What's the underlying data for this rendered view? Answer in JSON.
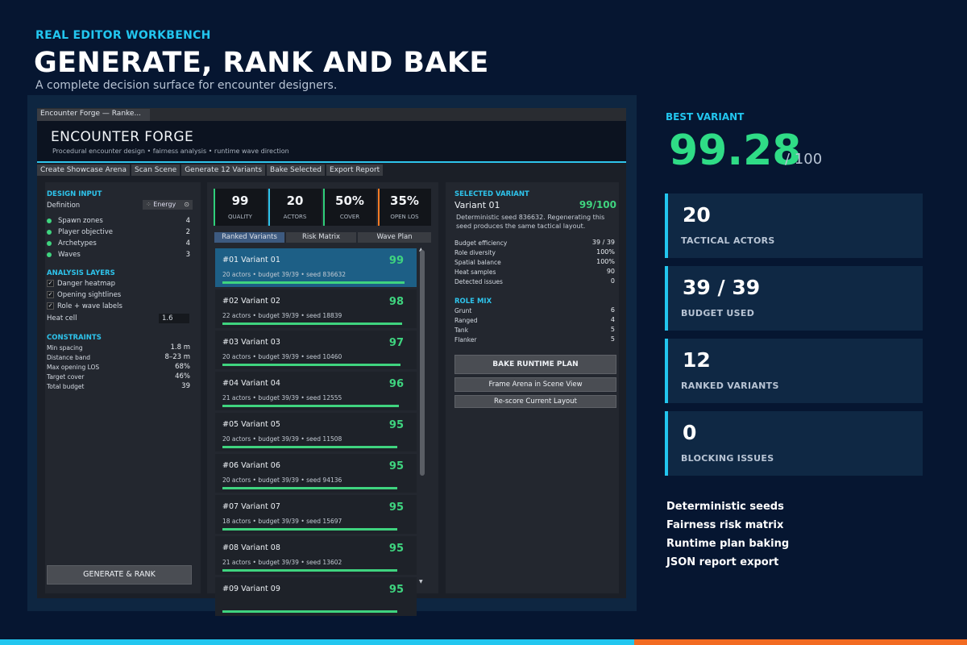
{
  "hero": {
    "eyebrow": "REAL EDITOR WORKBENCH",
    "title": "GENERATE, RANK AND BAKE",
    "subtitle": "A complete decision surface for encounter designers."
  },
  "window": {
    "tab": "Encounter Forge — Ranke...",
    "title": "ENCOUNTER FORGE",
    "subtitle": "Procedural encounter design • fairness analysis • runtime wave direction",
    "toolbar": [
      "Create Showcase Arena",
      "Scan Scene",
      "Generate 12 Variants",
      "Bake Selected",
      "Export Report"
    ]
  },
  "design_input": {
    "title": "DESIGN INPUT",
    "definition_label": "Definition",
    "definition_value": "Energy",
    "items": [
      {
        "label": "Spawn zones",
        "value": "4"
      },
      {
        "label": "Player objective",
        "value": "2"
      },
      {
        "label": "Archetypes",
        "value": "4"
      },
      {
        "label": "Waves",
        "value": "3"
      }
    ]
  },
  "analysis_layers": {
    "title": "ANALYSIS LAYERS",
    "items": [
      "Danger heatmap",
      "Opening sightlines",
      "Role + wave labels"
    ],
    "heat_label": "Heat cell",
    "heat_value": "1.6"
  },
  "constraints": {
    "title": "CONSTRAINTS",
    "items": [
      {
        "label": "Min spacing",
        "value": "1.8 m"
      },
      {
        "label": "Distance band",
        "value": "8–23 m"
      },
      {
        "label": "Max opening LOS",
        "value": "68%"
      },
      {
        "label": "Target cover",
        "value": "46%"
      },
      {
        "label": "Total budget",
        "value": "39"
      }
    ]
  },
  "generate_button": "GENERATE & RANK",
  "stats": [
    {
      "value": "99",
      "label": "QUALITY",
      "color": "#2fcf7a"
    },
    {
      "value": "20",
      "label": "ACTORS",
      "color": "#2ec4ec"
    },
    {
      "value": "50%",
      "label": "COVER",
      "color": "#2fcf7a"
    },
    {
      "value": "35%",
      "label": "OPEN LOS",
      "color": "#f27a25"
    }
  ],
  "variant_tabs": [
    "Ranked Variants",
    "Risk Matrix",
    "Wave Plan"
  ],
  "variants": [
    {
      "name": "#01  Variant 01",
      "meta": "20 actors  •  budget 39/39  •  seed 836632",
      "score": "99",
      "fill": 0.99
    },
    {
      "name": "#02  Variant 02",
      "meta": "22 actors  •  budget 39/39  •  seed 18839",
      "score": "98",
      "fill": 0.98
    },
    {
      "name": "#03  Variant 03",
      "meta": "20 actors  •  budget 39/39  •  seed 10460",
      "score": "97",
      "fill": 0.97
    },
    {
      "name": "#04  Variant 04",
      "meta": "21 actors  •  budget 39/39  •  seed 12555",
      "score": "96",
      "fill": 0.96
    },
    {
      "name": "#05  Variant 05",
      "meta": "20 actors  •  budget 39/39  •  seed 11508",
      "score": "95",
      "fill": 0.95
    },
    {
      "name": "#06  Variant 06",
      "meta": "20 actors  •  budget 39/39  •  seed 94136",
      "score": "95",
      "fill": 0.95
    },
    {
      "name": "#07  Variant 07",
      "meta": "18 actors  •  budget 39/39  •  seed 15697",
      "score": "95",
      "fill": 0.95
    },
    {
      "name": "#08  Variant 08",
      "meta": "21 actors  •  budget 39/39  •  seed 13602",
      "score": "95",
      "fill": 0.95
    },
    {
      "name": "#09  Variant 09",
      "meta": "",
      "score": "95",
      "fill": 0.95
    }
  ],
  "selected": {
    "title": "SELECTED VARIANT",
    "name": "Variant 01",
    "score": "99/100",
    "desc": "Deterministic seed 836632. Regenerating this seed produces the same tactical layout.",
    "metrics": [
      {
        "label": "Budget efficiency",
        "value": "39 / 39"
      },
      {
        "label": "Role diversity",
        "value": "100%"
      },
      {
        "label": "Spatial balance",
        "value": "100%"
      },
      {
        "label": "Heat samples",
        "value": "90"
      },
      {
        "label": "Detected issues",
        "value": "0"
      }
    ],
    "role_title": "ROLE MIX",
    "roles": [
      {
        "label": "Grunt",
        "value": "6"
      },
      {
        "label": "Ranged",
        "value": "4"
      },
      {
        "label": "Tank",
        "value": "5"
      },
      {
        "label": "Flanker",
        "value": "5"
      }
    ],
    "bake_button": "BAKE RUNTIME PLAN",
    "frame_button": "Frame Arena in Scene View",
    "rescore_button": "Re-score Current Layout"
  },
  "best": {
    "label": "BEST VARIANT",
    "value": "99.28",
    "of": "/ 100"
  },
  "cards": [
    {
      "value": "20",
      "label": "TACTICAL ACTORS"
    },
    {
      "value": "39 / 39",
      "label": "BUDGET USED"
    },
    {
      "value": "12",
      "label": "RANKED VARIANTS"
    },
    {
      "value": "0",
      "label": "BLOCKING ISSUES"
    }
  ],
  "features": [
    "Deterministic seeds",
    "Fairness risk matrix",
    "Runtime plan baking",
    "JSON report export"
  ],
  "colors": {
    "accent_cyan": "#22c6ef",
    "accent_green": "#2fdc86",
    "accent_orange": "#f26b21",
    "background": "#061631"
  }
}
